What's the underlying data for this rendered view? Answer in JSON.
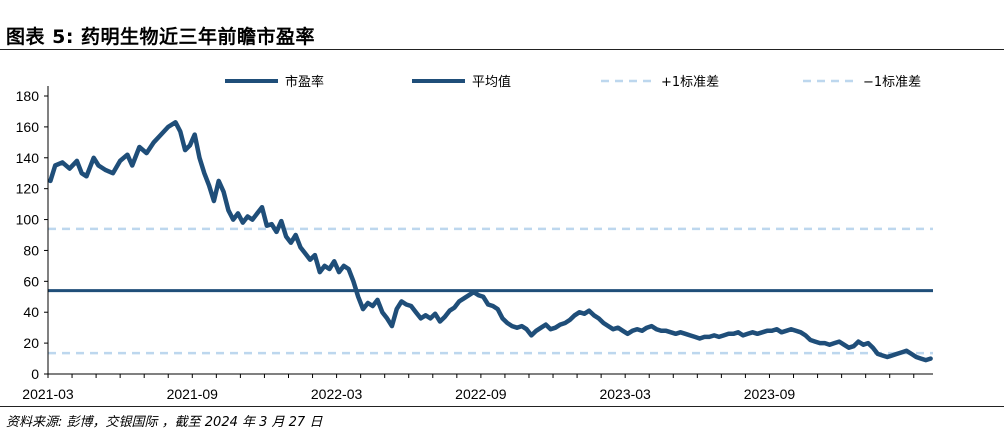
{
  "header": {
    "title": "图表 5: 药明生物近三年前瞻市盈率"
  },
  "footer": {
    "source": "资料来源: 彭博，交银国际 ，截至 2024 年 3 月 27 日"
  },
  "colors": {
    "pe": "#1f4e79",
    "mean": "#1f4e79",
    "band": "#bdd7ee",
    "axis": "#000000"
  },
  "chart_data": {
    "type": "line",
    "title": "药明生物近三年前瞻市盈率",
    "xlabel": "",
    "ylabel": "",
    "ylim": [
      0,
      180
    ],
    "yticks": [
      0,
      20,
      40,
      60,
      80,
      100,
      120,
      140,
      160,
      180
    ],
    "xtick_labels": [
      "2021-03",
      "2021-09",
      "2022-03",
      "2022-09",
      "2023-03",
      "2023-09"
    ],
    "xtick_months": [
      0,
      6,
      12,
      18,
      24,
      30
    ],
    "xlim_months": [
      0,
      36.8
    ],
    "grid": false,
    "legend": [
      "市盈率",
      "平均值",
      "+1标准差",
      "−1标准差"
    ],
    "legend_position": "top",
    "series": [
      {
        "name": "市盈率",
        "style": "solid-thick",
        "points": [
          [
            0.1,
            125
          ],
          [
            0.3,
            135
          ],
          [
            0.6,
            137
          ],
          [
            0.9,
            133
          ],
          [
            1.2,
            138
          ],
          [
            1.4,
            130
          ],
          [
            1.6,
            128
          ],
          [
            1.9,
            140
          ],
          [
            2.1,
            135
          ],
          [
            2.4,
            132
          ],
          [
            2.7,
            130
          ],
          [
            3.0,
            138
          ],
          [
            3.3,
            142
          ],
          [
            3.5,
            135
          ],
          [
            3.8,
            147
          ],
          [
            4.1,
            143
          ],
          [
            4.4,
            150
          ],
          [
            4.7,
            155
          ],
          [
            5.0,
            160
          ],
          [
            5.3,
            163
          ],
          [
            5.5,
            157
          ],
          [
            5.7,
            145
          ],
          [
            5.9,
            148
          ],
          [
            6.1,
            155
          ],
          [
            6.3,
            140
          ],
          [
            6.5,
            130
          ],
          [
            6.7,
            122
          ],
          [
            6.9,
            112
          ],
          [
            7.1,
            125
          ],
          [
            7.3,
            118
          ],
          [
            7.5,
            106
          ],
          [
            7.7,
            100
          ],
          [
            7.9,
            104
          ],
          [
            8.1,
            98
          ],
          [
            8.3,
            102
          ],
          [
            8.5,
            100
          ],
          [
            8.7,
            104
          ],
          [
            8.9,
            108
          ],
          [
            9.1,
            96
          ],
          [
            9.3,
            97
          ],
          [
            9.5,
            92
          ],
          [
            9.7,
            99
          ],
          [
            9.9,
            89
          ],
          [
            10.1,
            85
          ],
          [
            10.3,
            90
          ],
          [
            10.5,
            82
          ],
          [
            10.7,
            78
          ],
          [
            10.9,
            74
          ],
          [
            11.1,
            77
          ],
          [
            11.3,
            66
          ],
          [
            11.5,
            70
          ],
          [
            11.7,
            68
          ],
          [
            11.9,
            73
          ],
          [
            12.1,
            66
          ],
          [
            12.3,
            70
          ],
          [
            12.5,
            68
          ],
          [
            12.7,
            60
          ],
          [
            12.9,
            50
          ],
          [
            13.1,
            42
          ],
          [
            13.3,
            46
          ],
          [
            13.5,
            44
          ],
          [
            13.7,
            48
          ],
          [
            13.9,
            40
          ],
          [
            14.1,
            36
          ],
          [
            14.3,
            31
          ],
          [
            14.5,
            42
          ],
          [
            14.7,
            47
          ],
          [
            14.9,
            45
          ],
          [
            15.1,
            44
          ],
          [
            15.3,
            40
          ],
          [
            15.5,
            36
          ],
          [
            15.7,
            38
          ],
          [
            15.9,
            36
          ],
          [
            16.1,
            39
          ],
          [
            16.3,
            34
          ],
          [
            16.5,
            37
          ],
          [
            16.7,
            41
          ],
          [
            16.9,
            43
          ],
          [
            17.1,
            47
          ],
          [
            17.3,
            49
          ],
          [
            17.5,
            51
          ],
          [
            17.7,
            53
          ],
          [
            17.9,
            51
          ],
          [
            18.1,
            50
          ],
          [
            18.3,
            45
          ],
          [
            18.5,
            44
          ],
          [
            18.7,
            42
          ],
          [
            18.9,
            36
          ],
          [
            19.1,
            33
          ],
          [
            19.3,
            31
          ],
          [
            19.5,
            30
          ],
          [
            19.7,
            31
          ],
          [
            19.9,
            29
          ],
          [
            20.1,
            25
          ],
          [
            20.3,
            28
          ],
          [
            20.5,
            30
          ],
          [
            20.7,
            32
          ],
          [
            20.9,
            29
          ],
          [
            21.1,
            30
          ],
          [
            21.3,
            32
          ],
          [
            21.5,
            33
          ],
          [
            21.7,
            35
          ],
          [
            21.9,
            38
          ],
          [
            22.1,
            40
          ],
          [
            22.3,
            39
          ],
          [
            22.5,
            41
          ],
          [
            22.7,
            38
          ],
          [
            22.9,
            36
          ],
          [
            23.1,
            33
          ],
          [
            23.3,
            31
          ],
          [
            23.5,
            29
          ],
          [
            23.7,
            30
          ],
          [
            23.9,
            28
          ],
          [
            24.1,
            26
          ],
          [
            24.3,
            28
          ],
          [
            24.5,
            29
          ],
          [
            24.7,
            28
          ],
          [
            24.9,
            30
          ],
          [
            25.1,
            31
          ],
          [
            25.3,
            29
          ],
          [
            25.5,
            28
          ],
          [
            25.7,
            28
          ],
          [
            25.9,
            27
          ],
          [
            26.1,
            26
          ],
          [
            26.3,
            27
          ],
          [
            26.5,
            26
          ],
          [
            26.7,
            25
          ],
          [
            26.9,
            24
          ],
          [
            27.1,
            23
          ],
          [
            27.3,
            24
          ],
          [
            27.5,
            24
          ],
          [
            27.7,
            25
          ],
          [
            27.9,
            24
          ],
          [
            28.1,
            25
          ],
          [
            28.3,
            26
          ],
          [
            28.5,
            26
          ],
          [
            28.7,
            27
          ],
          [
            28.9,
            25
          ],
          [
            29.1,
            26
          ],
          [
            29.3,
            27
          ],
          [
            29.5,
            26
          ],
          [
            29.7,
            27
          ],
          [
            29.9,
            28
          ],
          [
            30.1,
            28
          ],
          [
            30.3,
            29
          ],
          [
            30.5,
            27
          ],
          [
            30.7,
            28
          ],
          [
            30.9,
            29
          ],
          [
            31.1,
            28
          ],
          [
            31.3,
            27
          ],
          [
            31.5,
            25
          ],
          [
            31.7,
            22
          ],
          [
            31.9,
            21
          ],
          [
            32.1,
            20
          ],
          [
            32.3,
            20
          ],
          [
            32.5,
            19
          ],
          [
            32.7,
            20
          ],
          [
            32.9,
            21
          ],
          [
            33.1,
            19
          ],
          [
            33.3,
            17
          ],
          [
            33.5,
            18
          ],
          [
            33.7,
            21
          ],
          [
            33.9,
            19
          ],
          [
            34.1,
            20
          ],
          [
            34.3,
            17
          ],
          [
            34.5,
            13
          ],
          [
            34.7,
            12
          ],
          [
            34.9,
            11
          ],
          [
            35.1,
            12
          ],
          [
            35.3,
            13
          ],
          [
            35.5,
            14
          ],
          [
            35.7,
            15
          ],
          [
            35.9,
            13
          ],
          [
            36.1,
            11
          ],
          [
            36.3,
            10
          ],
          [
            36.5,
            9
          ],
          [
            36.7,
            10
          ]
        ]
      },
      {
        "name": "平均值",
        "style": "solid",
        "value": 54
      },
      {
        "name": "+1标准差",
        "style": "dashed",
        "value": 94
      },
      {
        "name": "−1标准差",
        "style": "dashed",
        "value": 13.5
      }
    ]
  }
}
